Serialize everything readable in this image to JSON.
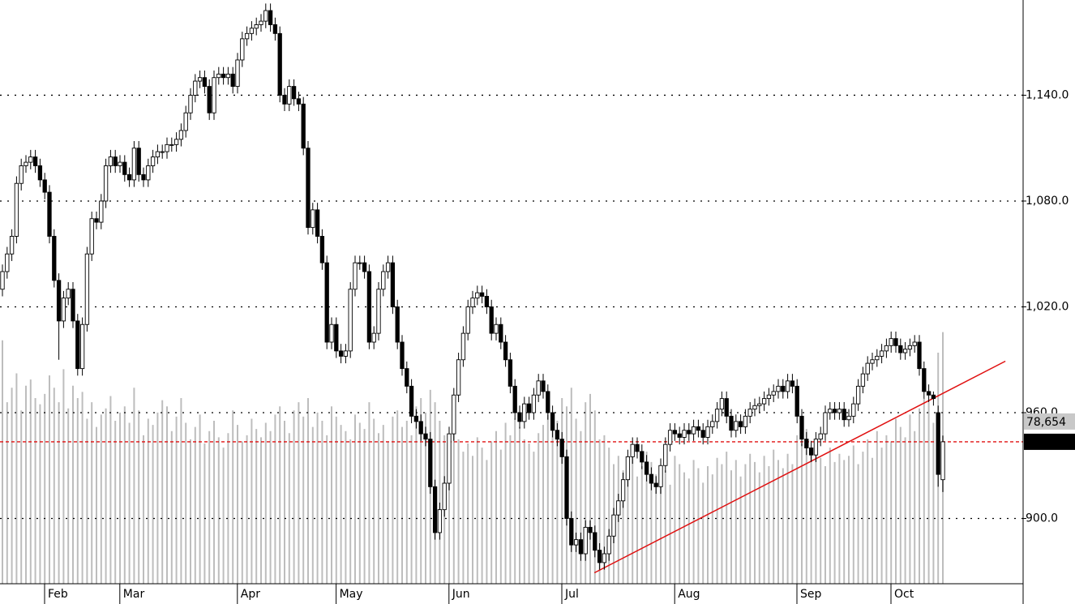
{
  "chart_data": {
    "type": "candlestick",
    "categories": [
      null,
      null,
      null,
      null,
      null,
      null,
      null,
      null,
      null,
      null,
      "Feb",
      null,
      null,
      null,
      null,
      null,
      null,
      null,
      null,
      null,
      null,
      null,
      null,
      null,
      null,
      null,
      "Mar",
      null,
      null,
      null,
      null,
      null,
      null,
      null,
      null,
      null,
      null,
      null,
      null,
      null,
      null,
      null,
      null,
      null,
      null,
      null,
      null,
      null,
      null,
      null,
      null,
      "Apr",
      null,
      null,
      null,
      null,
      null,
      null,
      null,
      null,
      null,
      null,
      null,
      null,
      null,
      null,
      null,
      null,
      null,
      null,
      null,
      null,
      "May",
      null,
      null,
      null,
      null,
      null,
      null,
      null,
      null,
      null,
      null,
      null,
      null,
      null,
      null,
      null,
      null,
      null,
      null,
      null,
      null,
      null,
      null,
      null,
      "Jun",
      null,
      null,
      null,
      null,
      null,
      null,
      null,
      null,
      null,
      null,
      null,
      null,
      null,
      null,
      null,
      null,
      null,
      null,
      null,
      null,
      null,
      null,
      null,
      "Jul",
      null,
      null,
      null,
      null,
      null,
      null,
      null,
      null,
      null,
      null,
      null,
      null,
      null,
      null,
      null,
      null,
      null,
      null,
      null,
      null,
      null,
      null,
      null,
      "Aug",
      null,
      null,
      null,
      null,
      null,
      null,
      null,
      null,
      null,
      null,
      null,
      null,
      null,
      null,
      null,
      null,
      null,
      null,
      null,
      null,
      null,
      null,
      null,
      null,
      null,
      "Sep",
      null,
      null,
      null,
      null,
      null,
      null,
      null,
      null,
      null,
      null,
      null,
      null,
      null,
      null,
      null,
      null,
      null,
      null,
      null,
      "Oct",
      null,
      null,
      null,
      null,
      null,
      null,
      null,
      null,
      null,
      null
    ],
    "open": [
      1030,
      1040,
      1050,
      1060,
      1090,
      1100,
      1102,
      1105,
      1100,
      1092,
      1085,
      1060,
      1035,
      1012,
      1025,
      1030,
      1012,
      985,
      1010,
      1050,
      1070,
      1068,
      1080,
      1100,
      1105,
      1100,
      1102,
      1095,
      1092,
      1110,
      1095,
      1092,
      1100,
      1105,
      1108,
      1108,
      1112,
      1112,
      1115,
      1120,
      1130,
      1140,
      1148,
      1150,
      1145,
      1130,
      1150,
      1152,
      1150,
      1152,
      1145,
      1160,
      1172,
      1175,
      1178,
      1180,
      1182,
      1188,
      1180,
      1175,
      1140,
      1135,
      1145,
      1138,
      1135,
      1110,
      1065,
      1075,
      1060,
      1045,
      1000,
      1010,
      995,
      992,
      995,
      1030,
      1045,
      1045,
      1040,
      1000,
      1005,
      1030,
      1040,
      1045,
      1020,
      1000,
      985,
      975,
      958,
      955,
      948,
      945,
      918,
      892,
      905,
      920,
      948,
      970,
      990,
      1005,
      1020,
      1025,
      1028,
      1026,
      1020,
      1005,
      1010,
      1000,
      990,
      975,
      960,
      955,
      965,
      960,
      970,
      978,
      972,
      960,
      950,
      945,
      935,
      900,
      885,
      888,
      880,
      895,
      892,
      882,
      875,
      880,
      890,
      902,
      910,
      922,
      935,
      942,
      938,
      932,
      925,
      920,
      918,
      930,
      942,
      950,
      948,
      946,
      950,
      948,
      952,
      950,
      946,
      952,
      955,
      962,
      968,
      958,
      950,
      955,
      952,
      958,
      962,
      964,
      965,
      968,
      970,
      972,
      975,
      972,
      978,
      975,
      958,
      945,
      940,
      936,
      945,
      948,
      960,
      962,
      960,
      962,
      956,
      958,
      965,
      975,
      982,
      988,
      990,
      992,
      995,
      998,
      1002,
      998,
      994,
      996,
      998,
      1000,
      985,
      972,
      970,
      960,
      922
    ],
    "high": [
      1044,
      1054,
      1064,
      1094,
      1104,
      1106,
      1109,
      1109,
      1104,
      1096,
      1089,
      1064,
      1039,
      1029,
      1034,
      1034,
      1016,
      1014,
      1054,
      1074,
      1074,
      1084,
      1104,
      1109,
      1109,
      1106,
      1106,
      1099,
      1114,
      1114,
      1099,
      1104,
      1109,
      1112,
      1112,
      1116,
      1116,
      1119,
      1124,
      1134,
      1144,
      1152,
      1154,
      1154,
      1149,
      1154,
      1156,
      1156,
      1156,
      1156,
      1164,
      1176,
      1179,
      1182,
      1184,
      1186,
      1192,
      1192,
      1184,
      1179,
      1144,
      1149,
      1149,
      1142,
      1139,
      1114,
      1079,
      1079,
      1064,
      1049,
      1014,
      1014,
      999,
      999,
      1034,
      1049,
      1049,
      1049,
      1044,
      1009,
      1034,
      1044,
      1049,
      1049,
      1024,
      1004,
      989,
      979,
      962,
      959,
      952,
      949,
      922,
      909,
      924,
      952,
      974,
      994,
      1009,
      1024,
      1029,
      1032,
      1032,
      1030,
      1024,
      1014,
      1014,
      1004,
      994,
      979,
      964,
      969,
      969,
      974,
      982,
      982,
      976,
      964,
      954,
      949,
      939,
      904,
      892,
      892,
      899,
      899,
      896,
      886,
      884,
      894,
      906,
      914,
      926,
      939,
      946,
      946,
      942,
      936,
      929,
      924,
      934,
      946,
      954,
      954,
      952,
      954,
      954,
      956,
      956,
      954,
      956,
      959,
      966,
      972,
      972,
      962,
      959,
      959,
      962,
      966,
      968,
      969,
      972,
      974,
      976,
      979,
      979,
      982,
      982,
      979,
      962,
      949,
      944,
      949,
      952,
      964,
      966,
      966,
      966,
      966,
      962,
      969,
      979,
      986,
      992,
      994,
      996,
      999,
      1002,
      1006,
      1006,
      1002,
      1000,
      1002,
      1004,
      1004,
      989,
      976,
      972,
      964,
      947
    ],
    "low": [
      1026,
      1036,
      1046,
      1056,
      1086,
      1096,
      1098,
      1096,
      1088,
      1081,
      1056,
      1031,
      990,
      1008,
      1021,
      1008,
      981,
      981,
      1006,
      1046,
      1064,
      1064,
      1076,
      1096,
      1096,
      1096,
      1091,
      1088,
      1088,
      1091,
      1088,
      1088,
      1096,
      1101,
      1104,
      1104,
      1108,
      1108,
      1111,
      1116,
      1126,
      1136,
      1144,
      1141,
      1126,
      1126,
      1146,
      1146,
      1146,
      1141,
      1141,
      1156,
      1168,
      1171,
      1174,
      1176,
      1178,
      1176,
      1171,
      1136,
      1131,
      1131,
      1134,
      1131,
      1106,
      1061,
      1061,
      1056,
      1041,
      996,
      996,
      991,
      988,
      988,
      991,
      1026,
      1041,
      1036,
      996,
      996,
      1001,
      1026,
      1036,
      1016,
      996,
      981,
      971,
      954,
      951,
      944,
      941,
      914,
      888,
      888,
      901,
      916,
      944,
      966,
      986,
      1001,
      1016,
      1021,
      1022,
      1016,
      1001,
      1001,
      996,
      986,
      971,
      956,
      951,
      951,
      956,
      956,
      966,
      968,
      956,
      946,
      941,
      931,
      896,
      881,
      881,
      876,
      876,
      888,
      878,
      871,
      871,
      876,
      886,
      898,
      906,
      918,
      931,
      934,
      928,
      921,
      916,
      914,
      914,
      926,
      938,
      944,
      942,
      942,
      944,
      944,
      946,
      942,
      942,
      948,
      951,
      958,
      954,
      946,
      946,
      948,
      948,
      954,
      958,
      960,
      961,
      964,
      966,
      968,
      968,
      968,
      971,
      954,
      941,
      936,
      932,
      932,
      941,
      944,
      956,
      956,
      956,
      952,
      952,
      954,
      961,
      971,
      978,
      984,
      986,
      988,
      991,
      994,
      994,
      990,
      990,
      992,
      994,
      981,
      968,
      966,
      964,
      918,
      915
    ],
    "close": [
      1040,
      1050,
      1060,
      1090,
      1100,
      1102,
      1105,
      1100,
      1092,
      1085,
      1060,
      1035,
      1012,
      1025,
      1030,
      1012,
      985,
      1010,
      1050,
      1070,
      1068,
      1080,
      1100,
      1105,
      1100,
      1102,
      1095,
      1092,
      1110,
      1095,
      1092,
      1100,
      1105,
      1108,
      1108,
      1112,
      1112,
      1115,
      1120,
      1130,
      1140,
      1148,
      1150,
      1145,
      1130,
      1150,
      1152,
      1150,
      1152,
      1145,
      1160,
      1172,
      1175,
      1178,
      1180,
      1182,
      1188,
      1180,
      1175,
      1140,
      1135,
      1145,
      1138,
      1135,
      1110,
      1065,
      1075,
      1060,
      1045,
      1000,
      1010,
      995,
      992,
      995,
      1030,
      1045,
      1045,
      1040,
      1000,
      1005,
      1030,
      1040,
      1045,
      1020,
      1000,
      985,
      975,
      958,
      955,
      948,
      945,
      918,
      892,
      905,
      920,
      948,
      970,
      990,
      1005,
      1020,
      1025,
      1028,
      1026,
      1020,
      1005,
      1010,
      1000,
      990,
      975,
      960,
      955,
      965,
      960,
      970,
      978,
      972,
      960,
      950,
      945,
      935,
      900,
      885,
      888,
      880,
      895,
      892,
      882,
      875,
      880,
      890,
      902,
      910,
      922,
      935,
      942,
      938,
      932,
      925,
      920,
      918,
      930,
      942,
      950,
      948,
      946,
      950,
      948,
      952,
      950,
      946,
      952,
      955,
      962,
      968,
      958,
      950,
      955,
      952,
      958,
      962,
      964,
      965,
      968,
      970,
      972,
      975,
      972,
      978,
      975,
      958,
      945,
      940,
      936,
      945,
      948,
      960,
      962,
      960,
      962,
      956,
      958,
      965,
      975,
      982,
      988,
      990,
      992,
      995,
      998,
      1002,
      998,
      994,
      996,
      998,
      1000,
      985,
      972,
      970,
      968,
      925,
      943.49
    ],
    "volume": [
      118000,
      88000,
      95000,
      102000,
      84000,
      96000,
      99000,
      90000,
      87000,
      92000,
      101000,
      95000,
      88000,
      104000,
      85000,
      96000,
      90000,
      93000,
      80000,
      88000,
      76000,
      82000,
      85000,
      91000,
      79000,
      83000,
      86000,
      78000,
      95000,
      84000,
      72000,
      80000,
      77000,
      83000,
      89000,
      86000,
      74000,
      81000,
      90000,
      78000,
      70000,
      76000,
      82000,
      68000,
      74000,
      79000,
      71000,
      66000,
      73000,
      84000,
      77000,
      69000,
      72000,
      80000,
      75000,
      71000,
      78000,
      74000,
      82000,
      86000,
      79000,
      73000,
      84000,
      88000,
      81000,
      90000,
      76000,
      83000,
      79000,
      72000,
      86000,
      81000,
      77000,
      74000,
      70000,
      82000,
      78000,
      75000,
      88000,
      80000,
      73000,
      77000,
      69000,
      81000,
      84000,
      76000,
      79000,
      72000,
      86000,
      90000,
      83000,
      94000,
      88000,
      79000,
      72000,
      67000,
      75000,
      70000,
      64000,
      68000,
      62000,
      71000,
      66000,
      60000,
      69000,
      74000,
      65000,
      78000,
      72000,
      80000,
      76000,
      70000,
      68000,
      64000,
      73000,
      77000,
      82000,
      75000,
      79000,
      90000,
      86000,
      95000,
      80000,
      74000,
      88000,
      92000,
      84000,
      70000,
      72000,
      66000,
      58000,
      62000,
      55000,
      60000,
      66000,
      52000,
      57000,
      64000,
      59000,
      53000,
      50000,
      55000,
      48000,
      62000,
      58000,
      54000,
      51000,
      60000,
      56000,
      49000,
      57000,
      53000,
      61000,
      58000,
      64000,
      55000,
      60000,
      52000,
      58000,
      63000,
      59000,
      54000,
      62000,
      57000,
      65000,
      60000,
      56000,
      63000,
      58000,
      72000,
      68000,
      75000,
      64000,
      70000,
      61000,
      57000,
      66000,
      59000,
      63000,
      60000,
      62000,
      67000,
      58000,
      64000,
      70000,
      61000,
      74000,
      66000,
      72000,
      69000,
      80000,
      76000,
      71000,
      82000,
      74000,
      85000,
      90000,
      88000,
      78000,
      112000,
      122000
    ],
    "ylim": [
      863,
      1194
    ],
    "yticks": [
      {
        "value": 900,
        "label": "900.0"
      },
      {
        "value": 960,
        "label": "960.0"
      },
      {
        "value": 1020,
        "label": "1,020.0"
      },
      {
        "value": 1080,
        "label": "1,080.0"
      },
      {
        "value": 1140,
        "label": "1,140.0"
      }
    ],
    "y2lim": [
      0,
      283000
    ],
    "volume_marker": {
      "value": 78654,
      "label": "78,654"
    },
    "trendline": {
      "x": [
        125.9,
        213.3
      ],
      "values": [
        869.2,
        989.2
      ],
      "color": "#e01010"
    },
    "last_price_color": "#e01010",
    "up_color": "#ffffff",
    "down_color": "#000000",
    "volume_color": "#bdbdbd",
    "grid": true
  }
}
